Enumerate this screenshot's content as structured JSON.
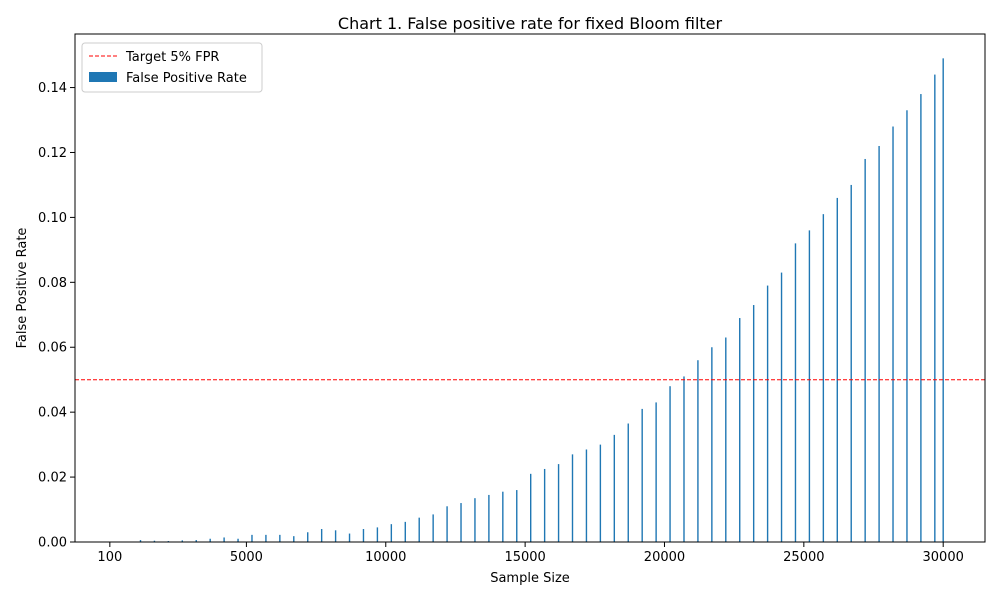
{
  "chart_data": {
    "type": "bar",
    "title": "Chart 1. False positive rate for fixed Bloom filter",
    "xlabel": "Sample Size",
    "ylabel": "False Positive Rate",
    "xlim": [
      -1150,
      31500
    ],
    "ylim": [
      0,
      0.1565
    ],
    "xticks": [
      100,
      5000,
      10000,
      15000,
      20000,
      25000,
      30000
    ],
    "xtick_labels": [
      "100",
      "5000",
      "10000",
      "15000",
      "20000",
      "25000",
      "30000"
    ],
    "yticks": [
      0,
      0.02,
      0.04,
      0.06,
      0.08,
      0.1,
      0.12,
      0.14
    ],
    "ytick_labels": [
      "0.00",
      "0.02",
      "0.04",
      "0.06",
      "0.08",
      "0.10",
      "0.12",
      "0.14"
    ],
    "reference_line": {
      "name": "Target 5% FPR",
      "y": 0.05,
      "color": "#ff0000",
      "style": "dashed"
    },
    "legend": {
      "position": "top-left",
      "entries": [
        {
          "label": "Target 5% FPR",
          "kind": "dashed-line",
          "color": "#ff0000"
        },
        {
          "label": "False Positive Rate",
          "kind": "bar",
          "color": "#1f77b4"
        }
      ]
    },
    "grid": false,
    "series": [
      {
        "name": "False Positive Rate",
        "color": "#1f77b4",
        "x": [
          1200,
          1700,
          2200,
          2700,
          3200,
          3700,
          4200,
          4700,
          5200,
          5700,
          6200,
          6700,
          7200,
          7700,
          8200,
          8700,
          9200,
          9700,
          10200,
          10700,
          11200,
          11700,
          12200,
          12700,
          13200,
          13700,
          14200,
          14700,
          15200,
          15700,
          16200,
          16700,
          17200,
          17700,
          18200,
          18700,
          19200,
          19700,
          20200,
          20700,
          21200,
          21700,
          22200,
          22700,
          23200,
          23700,
          24200,
          24700,
          25200,
          25700,
          26200,
          26700,
          27200,
          27700,
          28200,
          28700,
          29200,
          29700,
          30000
        ],
        "values": [
          0.0006,
          0.0004,
          0.0003,
          0.0005,
          0.0006,
          0.001,
          0.0014,
          0.001,
          0.0022,
          0.0022,
          0.0022,
          0.0018,
          0.003,
          0.004,
          0.0036,
          0.0026,
          0.004,
          0.0045,
          0.0055,
          0.0062,
          0.0075,
          0.0085,
          0.011,
          0.012,
          0.0135,
          0.0145,
          0.0155,
          0.016,
          0.021,
          0.0225,
          0.024,
          0.027,
          0.0285,
          0.03,
          0.033,
          0.0365,
          0.041,
          0.043,
          0.048,
          0.051,
          0.056,
          0.06,
          0.063,
          0.069,
          0.073,
          0.079,
          0.083,
          0.092,
          0.096,
          0.101,
          0.106,
          0.11,
          0.118,
          0.122,
          0.128,
          0.133,
          0.138,
          0.144,
          0.149
        ]
      }
    ]
  }
}
